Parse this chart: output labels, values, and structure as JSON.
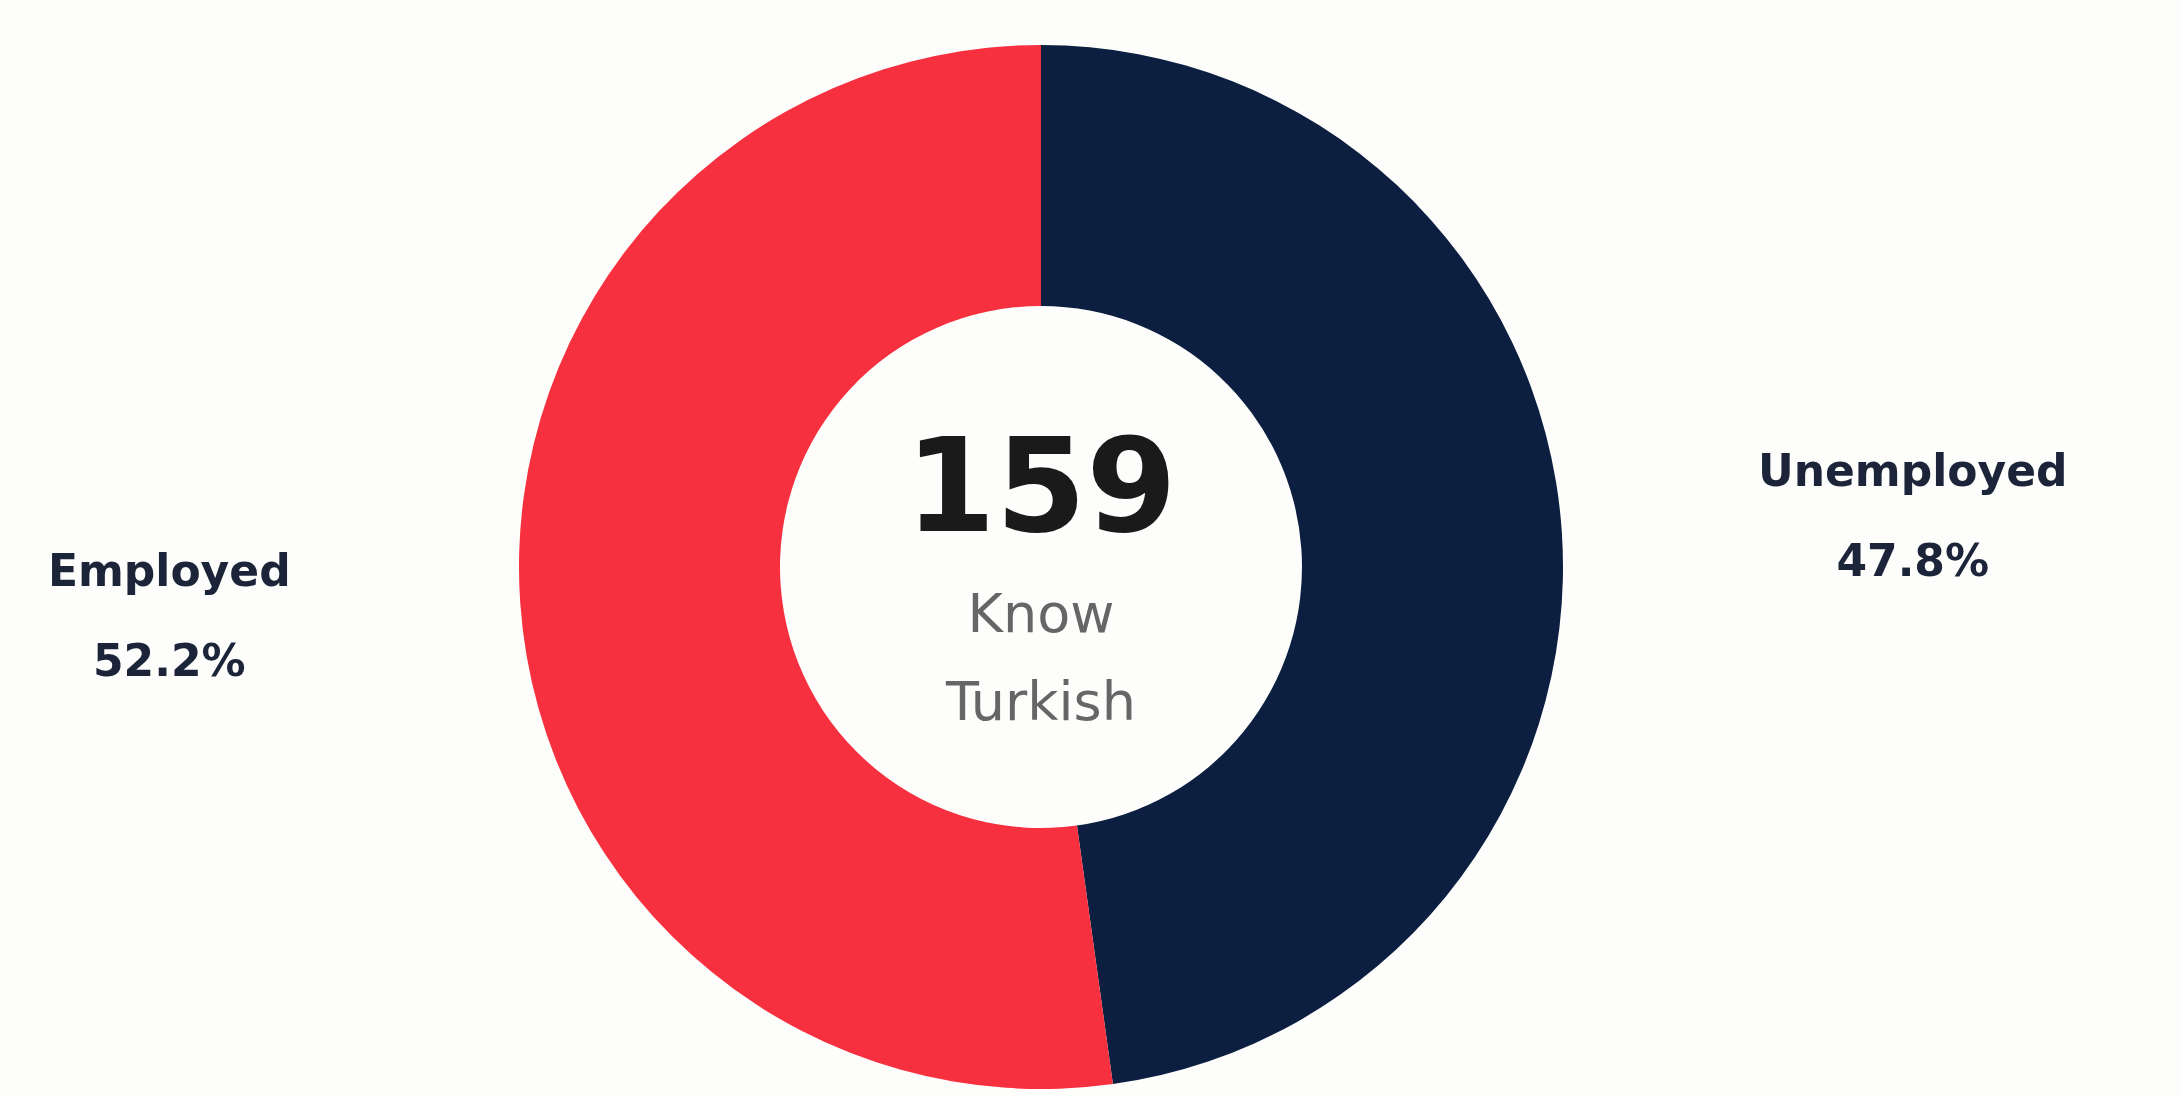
{
  "chart_data": {
    "type": "donut",
    "categories": [
      "Unemployed",
      "Employed"
    ],
    "values": [
      47.8,
      52.2
    ],
    "colors": [
      "#0c1f40",
      "#f7303f"
    ],
    "value_labels": [
      "47.8%",
      "52.2%"
    ],
    "legend": false,
    "annotations": [
      "159",
      "Know Turkish"
    ]
  }
}
